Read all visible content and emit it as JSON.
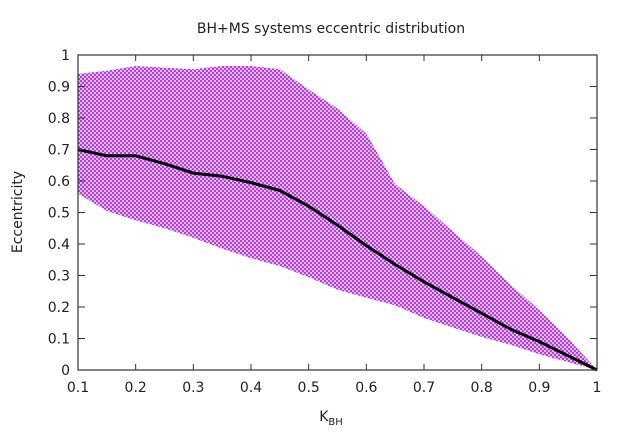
{
  "chart_data": {
    "type": "area",
    "title": "BH+MS systems eccentric distribution",
    "xlabel": "K",
    "xlabel_subscript": "BH",
    "ylabel": "Eccentricity",
    "xlim": [
      0.1,
      1
    ],
    "ylim": [
      0,
      1
    ],
    "xticks": [
      "0.1",
      "0.2",
      "0.3",
      "0.4",
      "0.5",
      "0.6",
      "0.7",
      "0.8",
      "0.9",
      "1"
    ],
    "yticks": [
      "0",
      "0.1",
      "0.2",
      "0.3",
      "0.4",
      "0.5",
      "0.6",
      "0.7",
      "0.8",
      "0.9",
      "1"
    ],
    "grid": false,
    "legend": "none",
    "colors": {
      "band": "#b040e0",
      "band_light": "#e4b8f4",
      "line": "#000000",
      "axis": "#333333"
    },
    "x": [
      0.1,
      0.15,
      0.2,
      0.25,
      0.3,
      0.35,
      0.4,
      0.45,
      0.5,
      0.55,
      0.6,
      0.65,
      0.7,
      0.75,
      0.8,
      0.85,
      0.9,
      0.95,
      1.0
    ],
    "series": [
      {
        "name": "mean",
        "style": "line",
        "values": [
          0.7,
          0.68,
          0.68,
          0.655,
          0.625,
          0.615,
          0.595,
          0.57,
          0.52,
          0.46,
          0.395,
          0.335,
          0.28,
          0.23,
          0.18,
          0.13,
          0.09,
          0.045,
          0.0
        ]
      },
      {
        "name": "upper",
        "style": "band-upper",
        "values": [
          0.94,
          0.95,
          0.965,
          0.96,
          0.955,
          0.965,
          0.965,
          0.955,
          0.89,
          0.83,
          0.75,
          0.59,
          0.52,
          0.44,
          0.36,
          0.27,
          0.19,
          0.1,
          0.0
        ]
      },
      {
        "name": "lower",
        "style": "band-lower",
        "values": [
          0.56,
          0.505,
          0.475,
          0.45,
          0.42,
          0.385,
          0.355,
          0.33,
          0.295,
          0.255,
          0.23,
          0.205,
          0.165,
          0.135,
          0.105,
          0.08,
          0.05,
          0.025,
          0.0
        ]
      }
    ]
  }
}
